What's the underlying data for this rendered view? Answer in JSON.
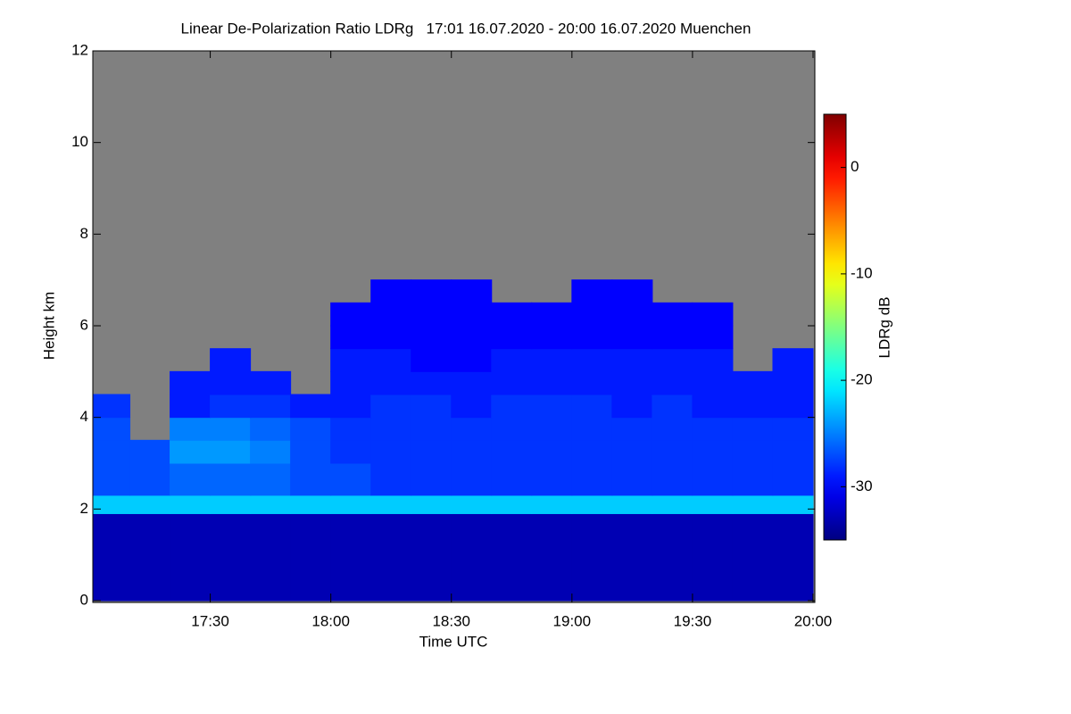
{
  "chart_data": {
    "type": "heatmap",
    "title": "Linear De-Polarization Ratio LDRg   17:01 16.07.2020 - 20:00 16.07.2020 Muenchen",
    "xlabel": "Time UTC",
    "ylabel": "Height km",
    "xlim": [
      1021,
      1200
    ],
    "xticks": [
      {
        "value": 1050,
        "label": "17:30"
      },
      {
        "value": 1080,
        "label": "18:00"
      },
      {
        "value": 1110,
        "label": "18:30"
      },
      {
        "value": 1140,
        "label": "19:00"
      },
      {
        "value": 1170,
        "label": "19:30"
      },
      {
        "value": 1200,
        "label": "20:00"
      }
    ],
    "ylim": [
      0,
      12
    ],
    "yticks": [
      0,
      2,
      4,
      6,
      8,
      10,
      12
    ],
    "x_bins": [
      1021,
      1030,
      1040,
      1050,
      1060,
      1070,
      1080,
      1090,
      1100,
      1110,
      1120,
      1130,
      1140,
      1150,
      1160,
      1170,
      1180,
      1190,
      1200
    ],
    "y_bins": [
      0,
      1.9,
      2.3,
      3,
      3.5,
      4,
      4.5,
      5,
      5.5,
      6,
      6.5,
      7,
      12
    ],
    "z": [
      [
        -33,
        -33,
        -33,
        -33,
        -33,
        -33,
        -33,
        -33,
        -33,
        -33,
        -33,
        -33,
        -33,
        -33,
        -33,
        -33,
        -33,
        -33
      ],
      [
        -22,
        -22,
        -22,
        -22,
        -22,
        -22,
        -22,
        -22,
        -22,
        -22,
        -22,
        -22,
        -22,
        -22,
        -22,
        -22,
        -22,
        -22
      ],
      [
        -27,
        -27,
        -26,
        -26,
        -26,
        -27,
        -27,
        -28,
        -28,
        -28,
        -28,
        -28,
        -28,
        -28,
        -28,
        -28,
        -28,
        -28
      ],
      [
        -27,
        -27,
        -24,
        -24,
        -25,
        -27,
        -28,
        -28,
        -28,
        -28,
        -28,
        -28,
        -28,
        -28,
        -28,
        -28,
        -28,
        -28
      ],
      [
        -27,
        null,
        -25,
        -25,
        -26,
        -27,
        -28,
        -28,
        -28,
        -28,
        -28,
        -28,
        -28,
        -28,
        -28,
        -28,
        -28,
        -28
      ],
      [
        -28,
        null,
        -29,
        -28,
        -28,
        -29,
        -29,
        -28,
        -28,
        -29,
        -28,
        -28,
        -28,
        -29,
        -28,
        -29,
        -29,
        -29
      ],
      [
        null,
        null,
        -29,
        -29,
        -29,
        null,
        -29,
        -29,
        -29,
        -29,
        -29,
        -29,
        -29,
        -29,
        -29,
        -29,
        -29,
        -29
      ],
      [
        null,
        null,
        null,
        -29,
        null,
        null,
        -29,
        -29,
        -30,
        -30,
        -29,
        -29,
        -29,
        -29,
        -29,
        -29,
        null,
        -29
      ],
      [
        null,
        null,
        null,
        null,
        null,
        null,
        -30,
        -30,
        -30,
        -30,
        -30,
        -30,
        -30,
        -30,
        -30,
        -30,
        null,
        null
      ],
      [
        null,
        null,
        null,
        null,
        null,
        null,
        -30,
        -30,
        -30,
        -30,
        -30,
        -30,
        -30,
        -30,
        -30,
        -30,
        null,
        null
      ],
      [
        null,
        null,
        null,
        null,
        null,
        null,
        null,
        -30,
        -30,
        -30,
        null,
        null,
        -30,
        -30,
        null,
        null,
        null,
        null
      ],
      [
        null,
        null,
        null,
        null,
        null,
        null,
        null,
        null,
        null,
        null,
        null,
        null,
        null,
        null,
        null,
        null,
        null,
        null
      ]
    ],
    "nodata_color": "#808080",
    "colormap": "jet",
    "clim": [
      -35,
      5
    ],
    "colorbar_ticks": [
      0,
      -10,
      -20,
      -30
    ],
    "colorbar_label": "LDRg dB"
  }
}
